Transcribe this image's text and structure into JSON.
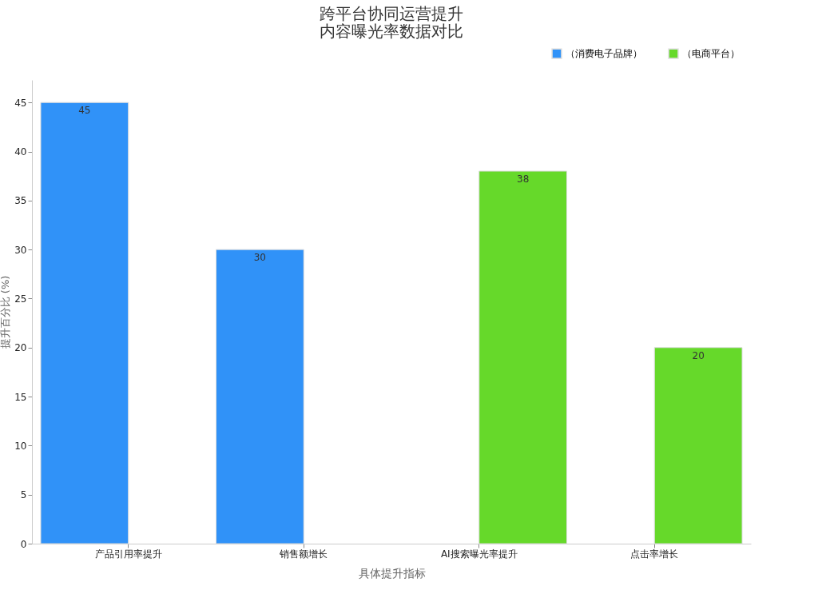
{
  "chart_data": {
    "type": "bar",
    "title": "跨平台协同运营提升内容曝光率数据对比",
    "xlabel": "具体提升指标",
    "ylabel": "提升百分比 (%)",
    "categories": [
      "产品引用率提升",
      "销售额增长",
      "AI搜索曝光率提升",
      "点击率增长"
    ],
    "series": [
      {
        "name": "（消费电子品牌）",
        "color": "#3092f8",
        "values": [
          45,
          30,
          null,
          null
        ]
      },
      {
        "name": "（电商平台）",
        "color": "#66d92a",
        "values": [
          null,
          null,
          38,
          20
        ]
      }
    ],
    "ylim": [
      0,
      47.3
    ],
    "yticks": [
      0,
      5,
      10,
      15,
      20,
      25,
      30,
      35,
      40,
      45
    ],
    "grid": false,
    "legend": "top right",
    "data_labels": true
  }
}
